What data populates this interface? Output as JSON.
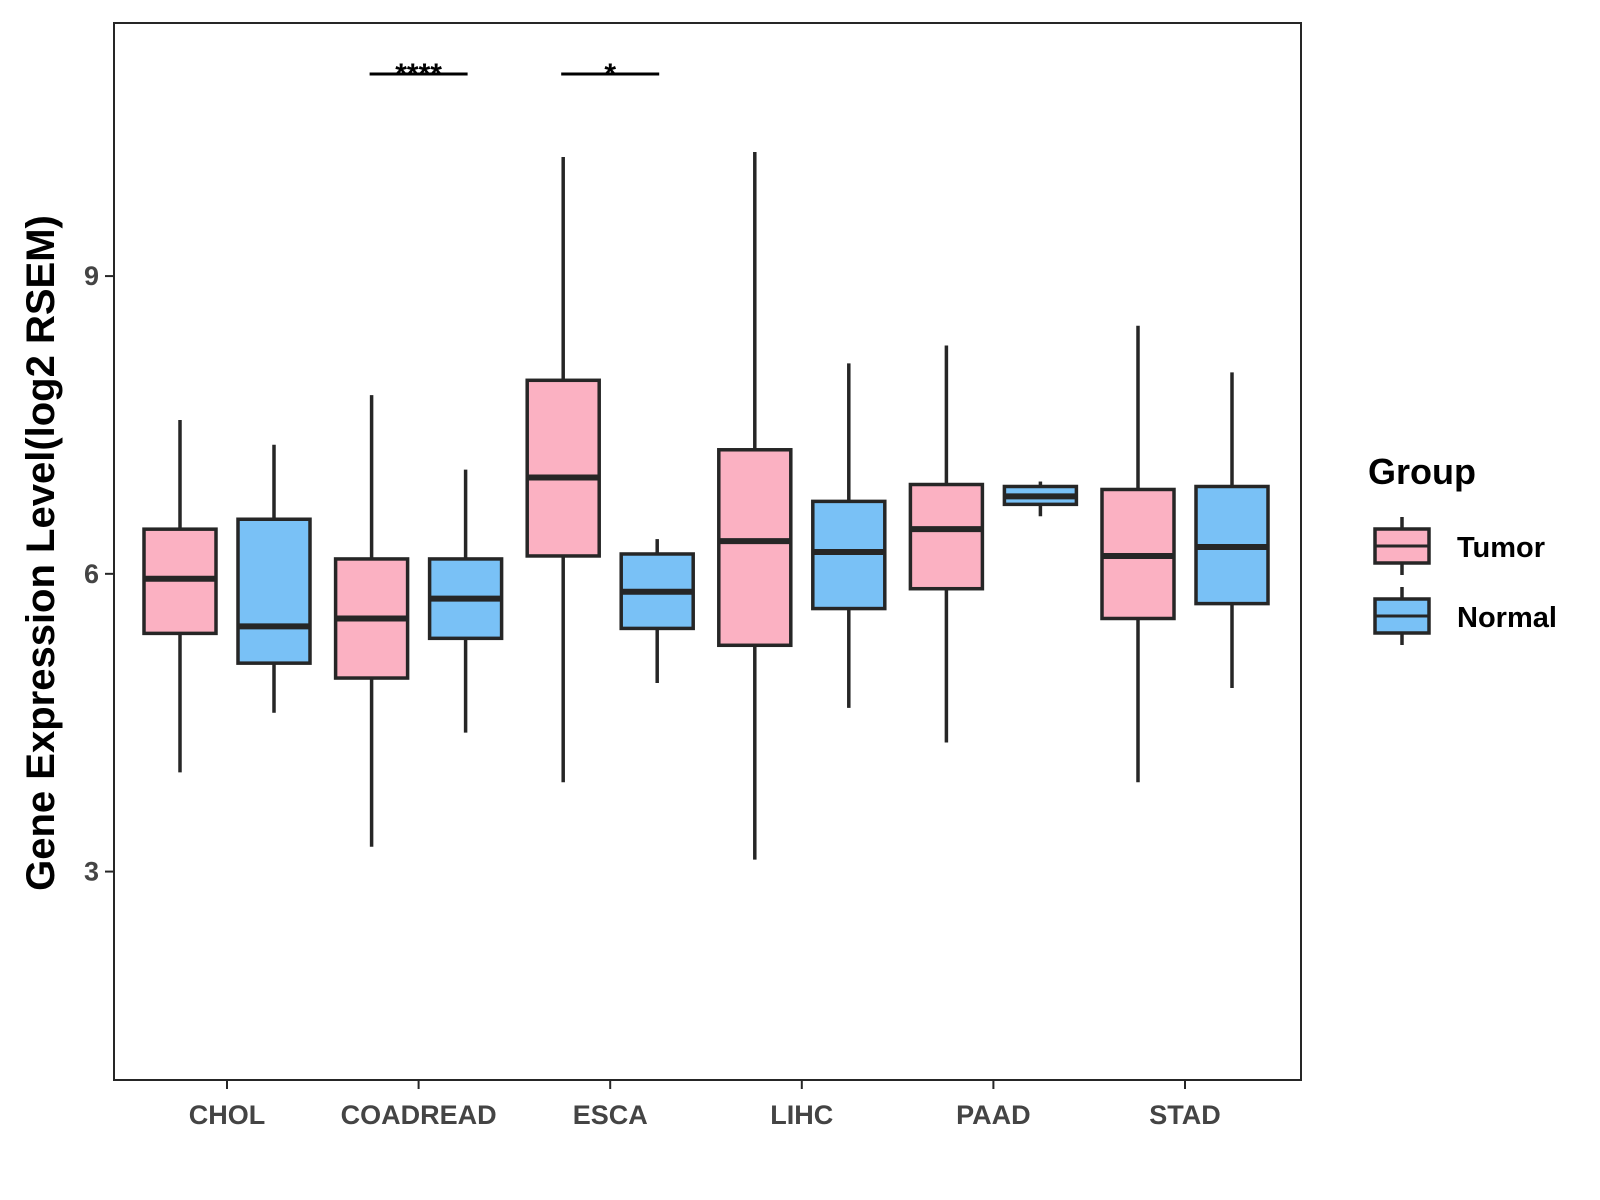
{
  "colors": {
    "tumor": "#fbb1c2",
    "normal": "#79c1f6",
    "outline": "#262626",
    "axis_text": "#444444"
  },
  "chart_data": {
    "type": "boxplot",
    "title": "",
    "xlabel": "",
    "ylabel": "Gene Expression Level(log2 RSEM)",
    "ylim": [
      0.9,
      11.55
    ],
    "yticks": [
      3,
      6,
      9
    ],
    "categories": [
      "CHOL",
      "COADREAD",
      "ESCA",
      "LIHC",
      "PAAD",
      "STAD"
    ],
    "legend": {
      "title": "Group",
      "position": "right",
      "entries": [
        "Tumor",
        "Normal"
      ]
    },
    "series": [
      {
        "name": "Tumor",
        "color_key": "tumor",
        "boxes": [
          {
            "min": 4.0,
            "q1": 5.4,
            "median": 5.95,
            "q3": 6.45,
            "max": 7.55
          },
          {
            "min": 3.25,
            "q1": 4.95,
            "median": 5.55,
            "q3": 6.15,
            "max": 7.8
          },
          {
            "min": 3.9,
            "q1": 6.18,
            "median": 6.97,
            "q3": 7.95,
            "max": 10.2
          },
          {
            "min": 3.12,
            "q1": 5.28,
            "median": 6.33,
            "q3": 7.25,
            "max": 10.25
          },
          {
            "min": 4.3,
            "q1": 5.85,
            "median": 6.45,
            "q3": 6.9,
            "max": 8.3
          },
          {
            "min": 3.9,
            "q1": 5.55,
            "median": 6.18,
            "q3": 6.85,
            "max": 8.5
          }
        ]
      },
      {
        "name": "Normal",
        "color_key": "normal",
        "boxes": [
          {
            "min": 4.6,
            "q1": 5.1,
            "median": 5.47,
            "q3": 6.55,
            "max": 7.3
          },
          {
            "min": 4.4,
            "q1": 5.35,
            "median": 5.75,
            "q3": 6.15,
            "max": 7.05
          },
          {
            "min": 4.9,
            "q1": 5.45,
            "median": 5.82,
            "q3": 6.2,
            "max": 6.35
          },
          {
            "min": 4.65,
            "q1": 5.65,
            "median": 6.22,
            "q3": 6.73,
            "max": 8.12
          },
          {
            "min": 6.58,
            "q1": 6.7,
            "median": 6.78,
            "q3": 6.88,
            "max": 6.93
          },
          {
            "min": 4.85,
            "q1": 5.7,
            "median": 6.27,
            "q3": 6.88,
            "max": 8.03
          }
        ]
      }
    ],
    "significance": [
      {
        "category": "COADREAD",
        "label": "****"
      },
      {
        "category": "ESCA",
        "label": "*"
      }
    ]
  }
}
